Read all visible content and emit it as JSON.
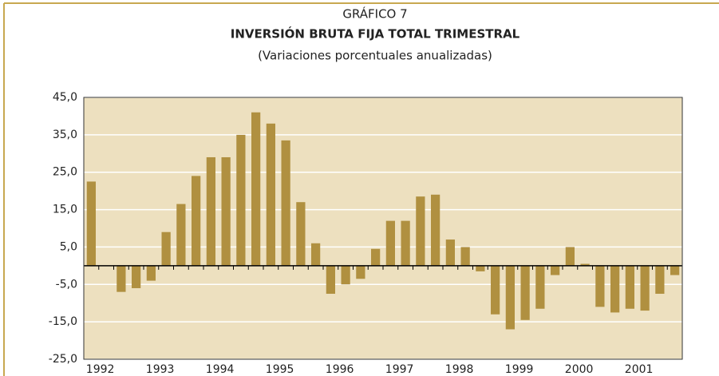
{
  "chart_data": {
    "type": "bar",
    "title": "GRÁFICO 7",
    "subtitle": "INVERSIÓN BRUTA FIJA TOTAL TRIMESTRAL",
    "note": "(Variaciones porcentuales anualizadas)",
    "categories": [
      "1992",
      null,
      null,
      null,
      "1993",
      null,
      null,
      null,
      "1994",
      null,
      null,
      null,
      "1995",
      null,
      null,
      null,
      "1996",
      null,
      null,
      null,
      "1997",
      null,
      null,
      null,
      "1998",
      null,
      null,
      null,
      "1999",
      null,
      null,
      null,
      "2000",
      null,
      null,
      null,
      "2001",
      null,
      null,
      null
    ],
    "values": [
      22.5,
      0,
      -7,
      -6,
      -4,
      9,
      16.5,
      24,
      29,
      29,
      35,
      41,
      38,
      33.5,
      17,
      6,
      -7.5,
      -5,
      -3.5,
      4.5,
      12,
      12,
      18.5,
      19,
      7,
      5,
      -1.5,
      -13,
      -17,
      -14.5,
      -11.5,
      -2.5,
      5,
      0.5,
      -11,
      -12.5,
      -11.5,
      -12,
      -7.5,
      -2.5
    ],
    "color": "#b09040",
    "ylim": [
      -25,
      45
    ],
    "yticks": [
      {
        "value": -25,
        "label": "-25,0"
      },
      {
        "value": -15,
        "label": "-15,0"
      },
      {
        "value": -5,
        "label": "-5,0"
      },
      {
        "value": 5,
        "label": "5,0"
      },
      {
        "value": 15,
        "label": "15,0"
      },
      {
        "value": 25,
        "label": "25,0"
      },
      {
        "value": 35,
        "label": "35,0"
      },
      {
        "value": 45,
        "label": "45,0"
      }
    ],
    "grid": true
  }
}
